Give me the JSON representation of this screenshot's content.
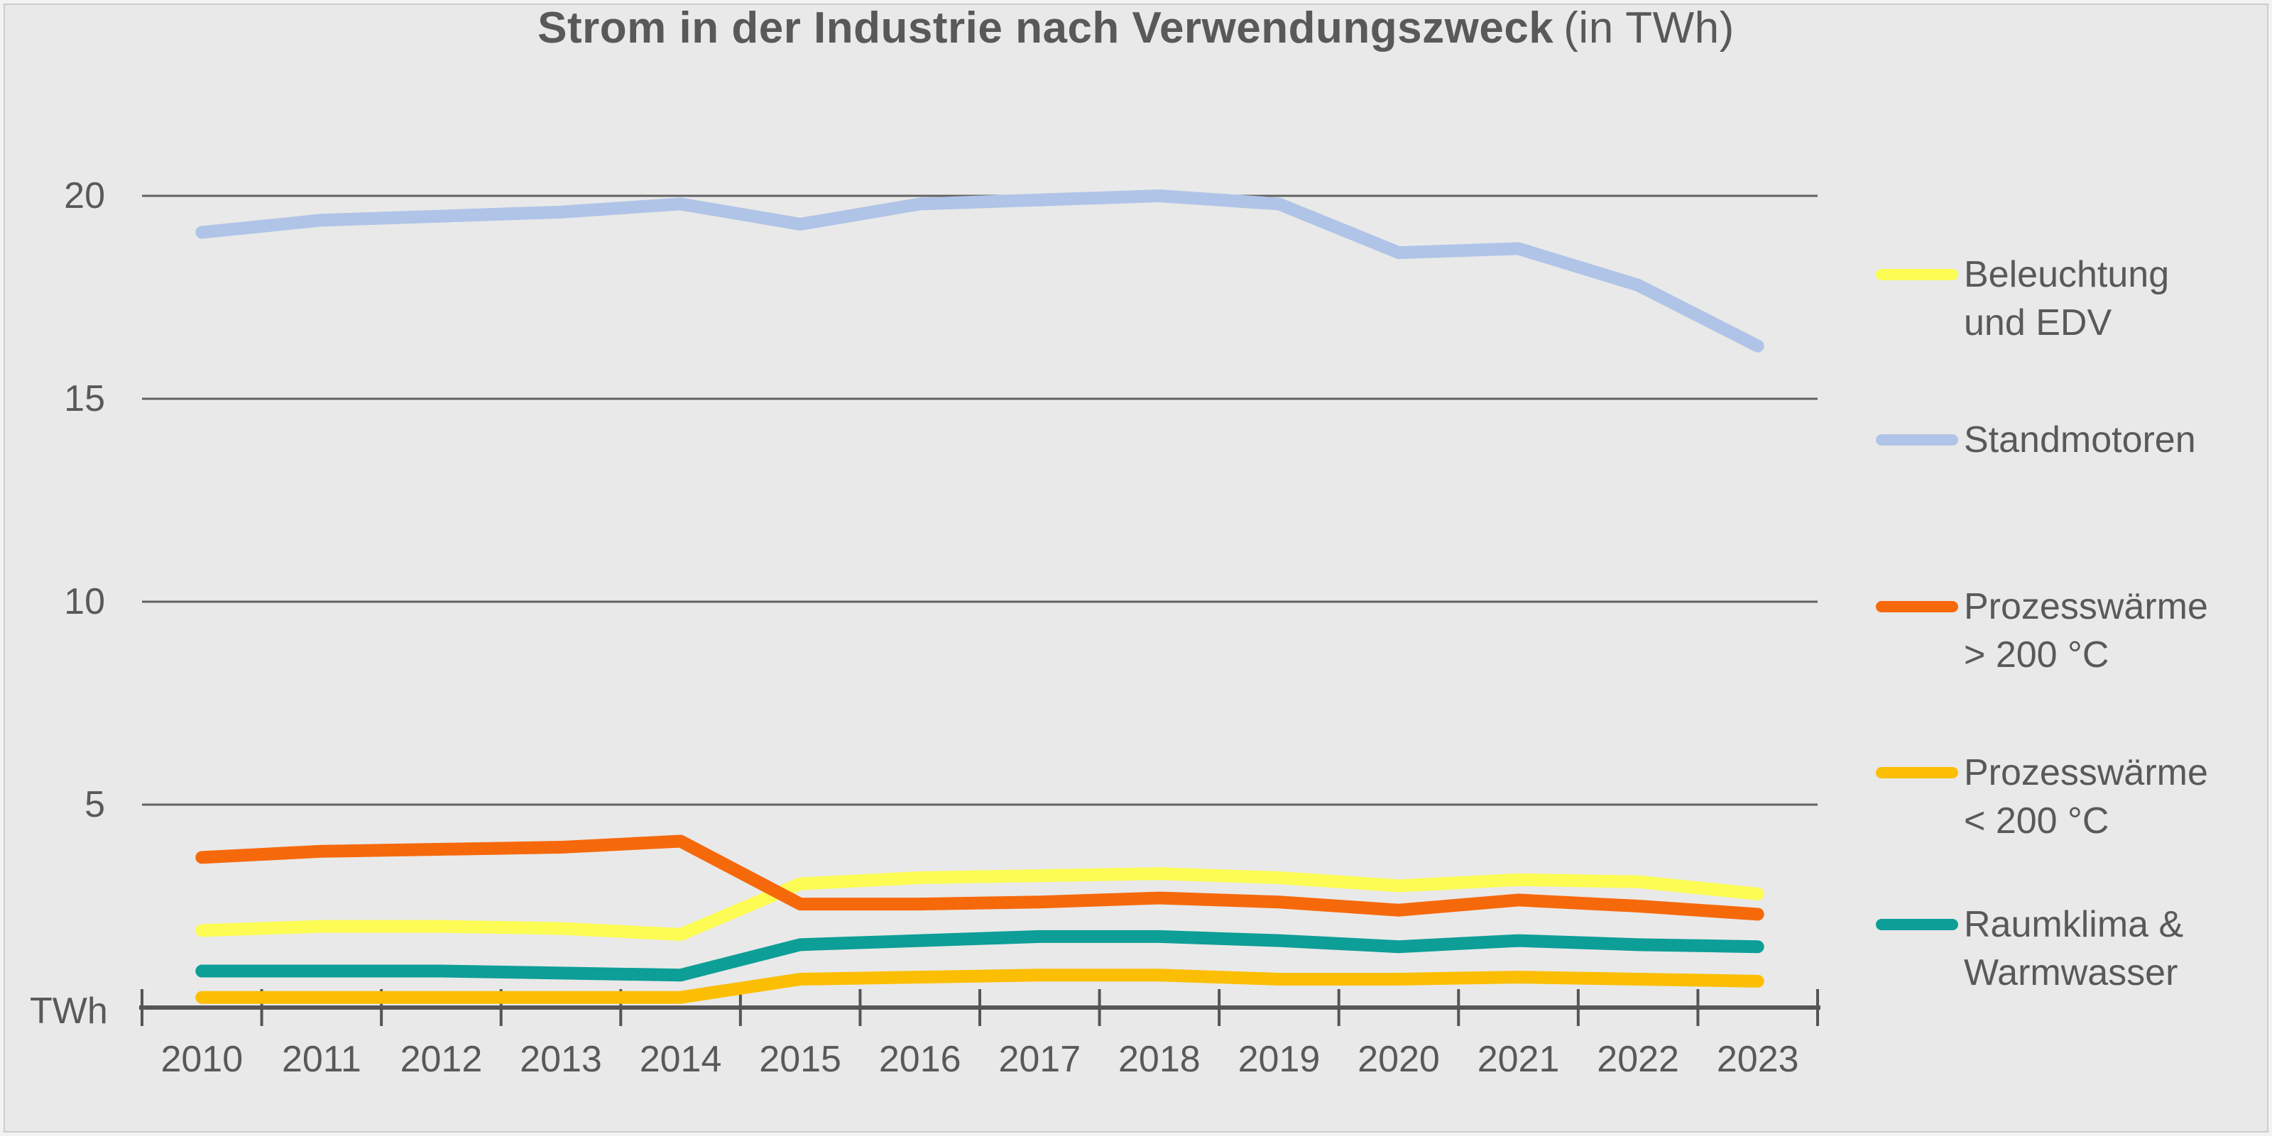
{
  "title": {
    "main": "Strom in der Industrie nach Verwendungszweck",
    "suffix": "(in TWh)"
  },
  "axis": {
    "unit_label": "TWh",
    "y_ticks": [
      20,
      15,
      10,
      5
    ],
    "x_tick_count": 15
  },
  "colors": {
    "background": "#E9E9E9",
    "text": "#595959",
    "axis_line": "#555555",
    "gridline": "#626262"
  },
  "chart_data": {
    "type": "line",
    "title": "Strom in der Industrie nach Verwendungszweck (in TWh)",
    "xlabel": "",
    "ylabel": "TWh",
    "ylim": [
      0,
      20
    ],
    "y_gridlines": [
      5,
      10,
      15,
      20
    ],
    "grid": "horizontal",
    "legend_position": "right",
    "categories": [
      "2010",
      "2011",
      "2012",
      "2013",
      "2014",
      "2015",
      "2016",
      "2017",
      "2018",
      "2019",
      "2020",
      "2021",
      "2022",
      "2023"
    ],
    "series": [
      {
        "name": "Beleuchtung und EDV",
        "label_lines": [
          "Beleuchtung",
          "und EDV"
        ],
        "color": "#FCFC54",
        "values": [
          1.9,
          2.0,
          2.0,
          1.95,
          1.8,
          3.05,
          3.2,
          3.25,
          3.3,
          3.2,
          3.0,
          3.15,
          3.1,
          2.8
        ]
      },
      {
        "name": "Standmotoren",
        "label_lines": [
          "Standmotoren"
        ],
        "color": "#AFC4E7",
        "values": [
          19.1,
          19.4,
          19.5,
          19.6,
          19.8,
          19.3,
          19.8,
          19.9,
          20.0,
          19.8,
          18.6,
          18.7,
          17.8,
          16.3
        ]
      },
      {
        "name": "Prozesswärme > 200 °C",
        "label_lines": [
          "Prozesswärme",
          "> 200 °C"
        ],
        "color": "#F6690B",
        "values": [
          3.7,
          3.85,
          3.9,
          3.95,
          4.1,
          2.55,
          2.55,
          2.6,
          2.7,
          2.6,
          2.4,
          2.65,
          2.5,
          2.3
        ]
      },
      {
        "name": "Prozesswärme < 200 °C",
        "label_lines": [
          "Prozesswärme",
          "< 200 °C"
        ],
        "color": "#FCBE03",
        "values": [
          0.25,
          0.25,
          0.25,
          0.25,
          0.25,
          0.7,
          0.75,
          0.8,
          0.8,
          0.7,
          0.7,
          0.75,
          0.7,
          0.65
        ]
      },
      {
        "name": "Raumklima & Warmwasser",
        "label_lines": [
          "Raumklima &",
          "Warmwasser"
        ],
        "color": "#0D9E97",
        "values": [
          0.9,
          0.9,
          0.9,
          0.85,
          0.8,
          1.55,
          1.65,
          1.75,
          1.75,
          1.65,
          1.5,
          1.65,
          1.55,
          1.5
        ]
      }
    ]
  }
}
